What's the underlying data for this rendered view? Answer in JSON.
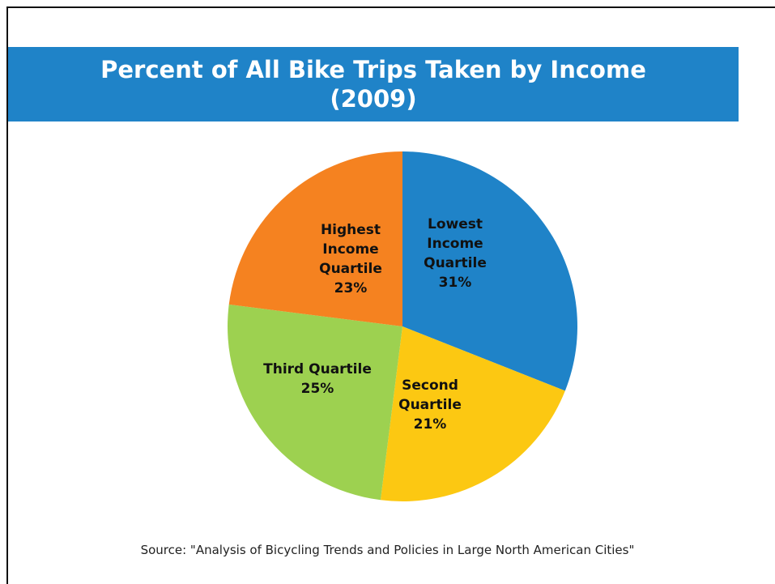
{
  "chart_data": {
    "type": "pie",
    "title": "Percent of All Bike Trips Taken by Income (2009)",
    "categories": [
      "Lowest Income Quartile",
      "Second Quartile",
      "Third Quartile",
      "Highest Income Quartile"
    ],
    "values": [
      31,
      21,
      25,
      23
    ],
    "value_labels": [
      "31%",
      "21%",
      "25%",
      "23%"
    ],
    "colors": [
      "#1f83c8",
      "#fcc812",
      "#9dd150",
      "#f58220"
    ],
    "source": "Source: \"Analysis of Bicycling Trends and Policies in Large North American Cities\""
  }
}
